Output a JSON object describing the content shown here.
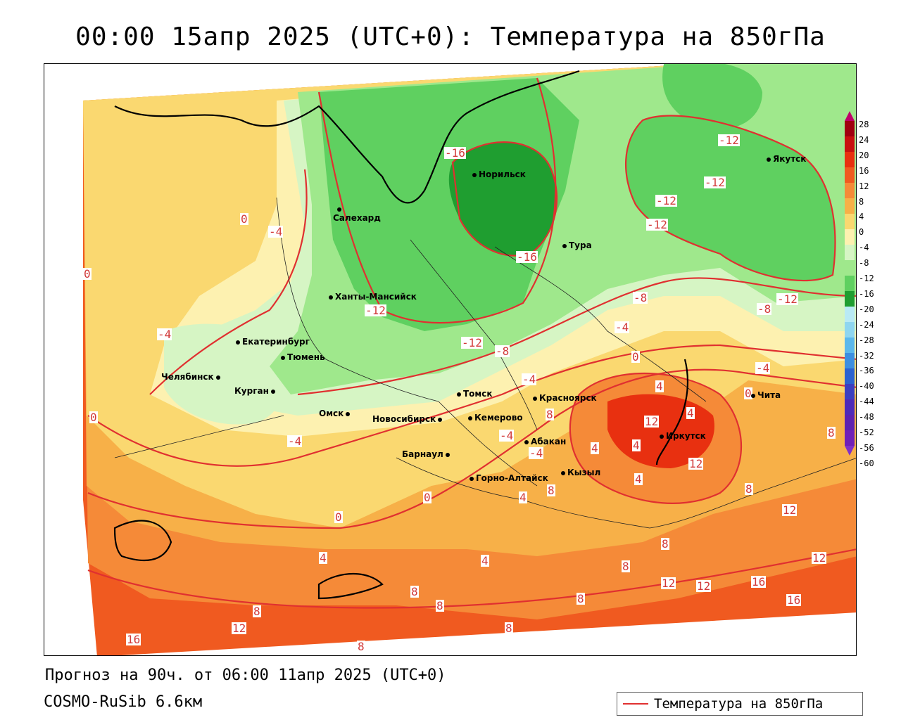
{
  "title": "00:00 15апр 2025 (UTC+0): Температура на 850гПа",
  "footer": {
    "forecast": "Прогноз на 90ч. от 06:00 11апр 2025 (UTC+0)",
    "model": "COSMO-RuSib 6.6км"
  },
  "legend": {
    "label": "Температура на 850гПа",
    "line_color": "#e03030"
  },
  "colorbar": {
    "ticks": [
      "28",
      "24",
      "20",
      "16",
      "12",
      "8",
      "4",
      "0",
      "-4",
      "-8",
      "-12",
      "-16",
      "-20",
      "-24",
      "-28",
      "-32",
      "-36",
      "-40",
      "-44",
      "-48",
      "-52",
      "-56",
      "-60"
    ],
    "colors": [
      "#c0006a",
      "#a00010",
      "#c81010",
      "#e83010",
      "#f05a20",
      "#f58a38",
      "#f7b048",
      "#fad870",
      "#fdf1b0",
      "#d6f5c4",
      "#9fe88c",
      "#5fd060",
      "#1f9e30",
      "#b9eaf5",
      "#8fd6f0",
      "#5cb8ec",
      "#3d8fe0",
      "#2b62d0",
      "#3b3fc0",
      "#4e2ab8",
      "#5d22b0",
      "#7020b8",
      "#8030c8"
    ]
  },
  "cities": [
    {
      "name": "Норильск"
    },
    {
      "name": "Якутск"
    },
    {
      "name": "Салехард"
    },
    {
      "name": "Тура"
    },
    {
      "name": "Ханты-Мансийск"
    },
    {
      "name": "Екатеринбург"
    },
    {
      "name": "Тюмень"
    },
    {
      "name": "Челябинск"
    },
    {
      "name": "Курган"
    },
    {
      "name": "Омск"
    },
    {
      "name": "Томск"
    },
    {
      "name": "Красноярск"
    },
    {
      "name": "Новосибирск"
    },
    {
      "name": "Кемерово"
    },
    {
      "name": "Абакан"
    },
    {
      "name": "Барнаул"
    },
    {
      "name": "Горно-Алтайск"
    },
    {
      "name": "Кызыл"
    },
    {
      "name": "Иркутск"
    },
    {
      "name": "Чита"
    }
  ],
  "contour_labels": [
    "-16",
    "-12",
    "-12",
    "-12",
    "-12",
    "-16",
    "-8",
    "-8",
    "-12",
    "-4",
    "-12",
    "-12",
    "-8",
    "-4",
    "0",
    "0",
    "0",
    "-4",
    "-4",
    "-4",
    "-4",
    "-4",
    "0",
    "4",
    "4",
    "8",
    "12",
    "12",
    "4",
    "4",
    "4",
    "8",
    "0",
    "4",
    "4",
    "0",
    "8",
    "12",
    "8",
    "12",
    "16",
    "12",
    "8",
    "8",
    "12",
    "16",
    "8",
    "8",
    "8",
    "8",
    "12",
    "16",
    "8",
    "-4",
    "0",
    "4",
    "8"
  ]
}
